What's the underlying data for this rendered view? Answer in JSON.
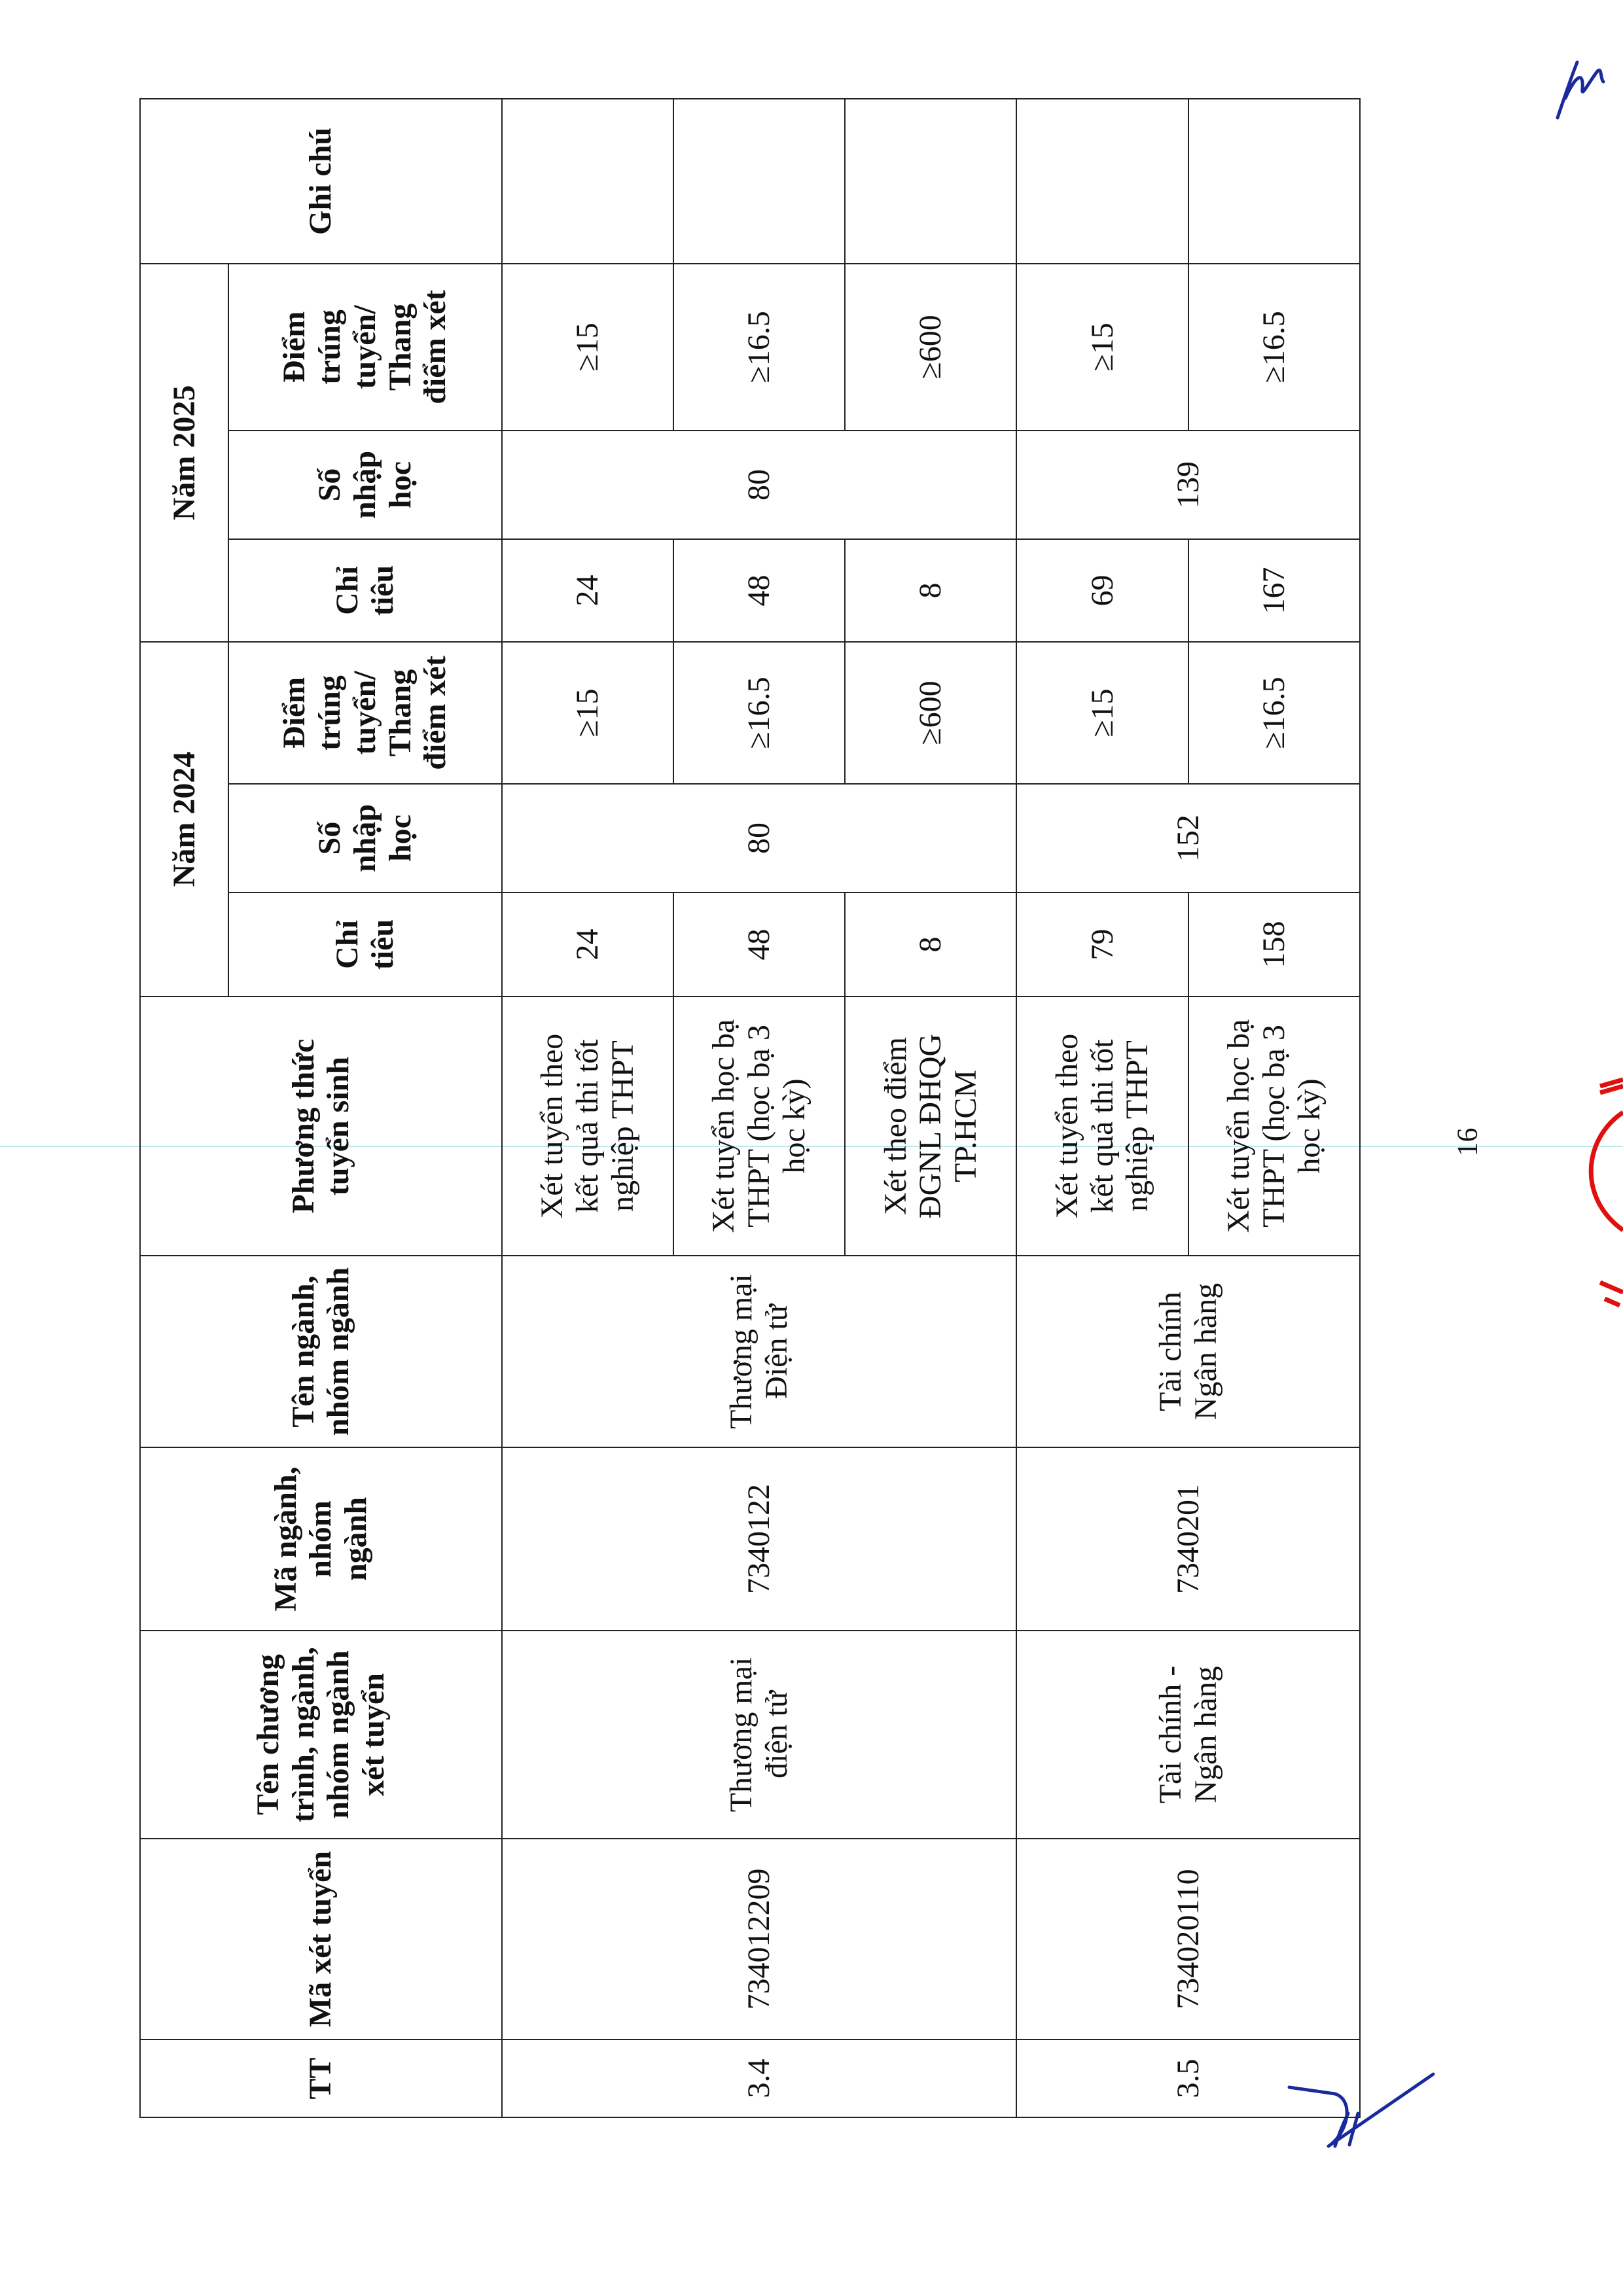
{
  "header": {
    "tt": "TT",
    "ma_xet_tuyen": "Mã xét tuyển",
    "ten_chuong_trinh": "Tên chương trình, ngành, nhóm ngành xét tuyển",
    "ma_nganh": "Mã ngành, nhóm ngành",
    "ten_nganh": "Tên ngành, nhóm ngành",
    "phuong_thuc": "Phương thức tuyển sinh",
    "year_2024": "Năm 2024",
    "year_2025": "Năm 2025",
    "chi_tieu": "Chỉ tiêu",
    "so_nhap_hoc": "Số nhập học",
    "diem_2024": "Điểm trúng tuyển/ Thang điểm xét",
    "diem_2025": "Điểm trúng tuyển/ Thang điểm xét",
    "ghi_chu": "Ghi chú"
  },
  "groups": [
    {
      "tt": "3.4",
      "ma_xet_tuyen": "734012209",
      "ten_chuong_trinh": "Thương mại điện tử",
      "ma_nganh": "7340122",
      "ten_nganh": "Thương mại Điện tử",
      "so_nhap_hoc_2024": "80",
      "so_nhap_hoc_2025": "80",
      "rows": [
        {
          "phuong_thuc": "Xét tuyển theo kết quả thi tốt nghiệp THPT",
          "chi_tieu_2024": "24",
          "diem_2024": "≥15",
          "chi_tieu_2025": "24",
          "diem_2025": "≥15",
          "ghi_chu": ""
        },
        {
          "phuong_thuc": "Xét tuyển học bạ THPT (học bạ 3 học kỳ)",
          "chi_tieu_2024": "48",
          "diem_2024": "≥16.5",
          "chi_tieu_2025": "48",
          "diem_2025": "≥16.5",
          "ghi_chu": ""
        },
        {
          "phuong_thuc": "Xét theo điểm ĐGNL ĐHQG TP.HCM",
          "chi_tieu_2024": "8",
          "diem_2024": "≥600",
          "chi_tieu_2025": "8",
          "diem_2025": "≥600",
          "ghi_chu": ""
        }
      ]
    },
    {
      "tt": "3.5",
      "ma_xet_tuyen": "734020110",
      "ten_chuong_trinh": "Tài chính - Ngân hàng",
      "ma_nganh": "7340201",
      "ten_nganh": "Tài chính Ngân hàng",
      "so_nhap_hoc_2024": "152",
      "so_nhap_hoc_2025": "139",
      "rows": [
        {
          "phuong_thuc": "Xét tuyển theo kết quả thi tốt nghiệp THPT",
          "chi_tieu_2024": "79",
          "diem_2024": "≥15",
          "chi_tieu_2025": "69",
          "diem_2025": "≥15",
          "ghi_chu": ""
        },
        {
          "phuong_thuc": "Xét tuyển học bạ THPT (học bạ 3 học kỳ)",
          "chi_tieu_2024": "158",
          "diem_2024": "≥16.5",
          "chi_tieu_2025": "167",
          "diem_2025": "≥16.5",
          "ghi_chu": ""
        }
      ]
    }
  ],
  "footer": {
    "page_number": "16"
  },
  "colors": {
    "ink": "#111111",
    "signature": "#1a2a9c",
    "stamp": "#e01010",
    "scan_line": "#bfe9ee"
  }
}
